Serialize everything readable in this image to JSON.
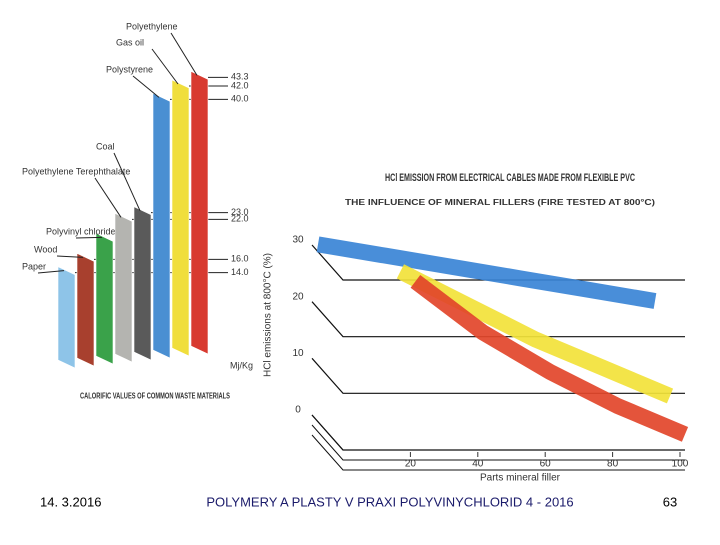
{
  "chart_data": [
    {
      "type": "bar",
      "title": "CALORIFIC VALUES OF COMMON WASTE MATERIALS",
      "unit": "Mj/Kg",
      "categories": [
        "Paper",
        "Wood",
        "Polyvinyl chloride",
        "Polyethylene Terephthalate",
        "Coal",
        "Polystyrene",
        "Gas oil",
        "Polyethylene"
      ],
      "values": [
        14,
        16,
        19,
        22,
        23,
        40,
        42,
        43.3
      ],
      "value_labels": [
        "14.0",
        "16.0",
        null,
        "22.0",
        "23.0",
        "40.0",
        "42.0",
        "43.3"
      ],
      "colors": [
        "#8ec4e8",
        "#a8402e",
        "#3aa24a",
        "#b4b4b0",
        "#5a5a5a",
        "#4a8fd2",
        "#f0de3c",
        "#d83a30"
      ],
      "ylim": [
        0,
        45
      ]
    },
    {
      "type": "line",
      "title": "HCl EMISSION FROM ELECTRICAL CABLES MADE FROM FLEXIBLE PVC",
      "subtitle": "THE INFLUENCE OF MINERAL FILLERS (FIRE TESTED AT 800°C)",
      "x_label": "Parts mineral filler",
      "y_label": "HCl emissions at 800°C (%)",
      "x": [
        0,
        20,
        40,
        60,
        80,
        100
      ],
      "series": [
        {
          "color": "#3a84d6",
          "values": [
            31,
            29,
            27,
            25,
            23,
            21
          ]
        },
        {
          "color": "#f2e23a",
          "values": [
            null,
            28,
            22,
            16,
            11,
            6
          ]
        },
        {
          "color": "#e2452a",
          "values": [
            null,
            28,
            19,
            12,
            6,
            1
          ]
        }
      ],
      "xlim": [
        0,
        100
      ],
      "ylim": [
        0,
        35
      ],
      "xticks": [
        20,
        40,
        60,
        80,
        100
      ],
      "yticks": [
        0,
        10,
        20,
        30
      ]
    }
  ],
  "footer": {
    "date": "14. 3.2016",
    "title": "POLYMERY A PLASTY V PRAXI POLYVINYCHLORID 4 - 2016",
    "page": "63"
  }
}
